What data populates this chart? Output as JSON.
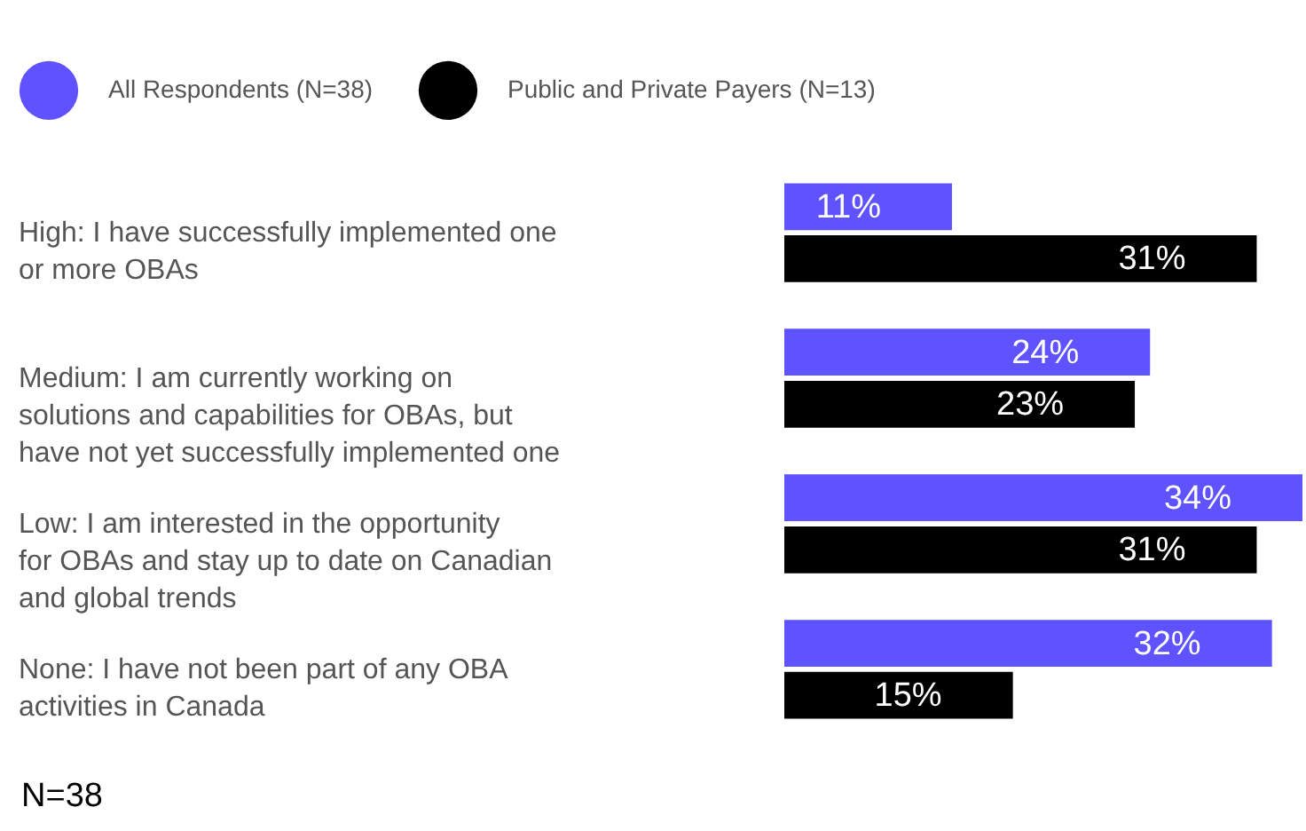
{
  "chart_data": {
    "type": "bar",
    "orientation": "horizontal",
    "categories": [
      "High: I have successfully implemented one or more OBAs",
      "Medium: I am currently working on solutions and capabilities for OBAs, but have not yet successfully implemented one",
      "Low: I am interested in the opportunity for OBAs and stay up to date on Canadian and global trends",
      "None: I have not been part of any OBA activities in Canada"
    ],
    "series": [
      {
        "name": "All Respondents (N=38)",
        "color": "#5f52ff",
        "values": [
          11,
          24,
          34,
          32
        ],
        "value_labels": [
          "11%",
          "24%",
          "34%",
          "32%"
        ]
      },
      {
        "name": "Public and Private Payers (N=13)",
        "color": "#000000",
        "values": [
          31,
          23,
          31,
          15
        ],
        "value_labels": [
          "31%",
          "23%",
          "31%",
          "15%"
        ]
      }
    ],
    "legend": "top left",
    "annotations": [
      "N=38"
    ]
  }
}
